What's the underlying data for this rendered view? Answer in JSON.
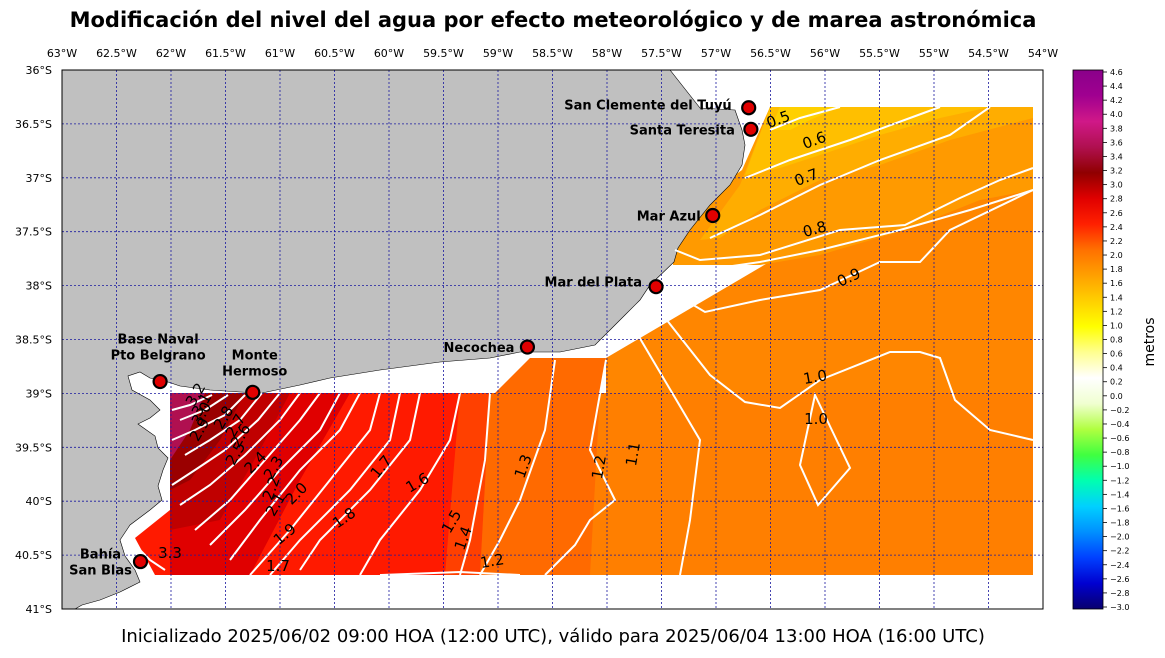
{
  "title": "Modificación del nivel del agua por efecto meteorológico y de marea astronómica",
  "footer": "Inicializado 2025/06/02 09:00 HOA (12:00 UTC), válido para 2025/06/04 13:00 HOA (16:00 UTC)",
  "lon_ticks": [
    "63°W",
    "62.5°W",
    "62°W",
    "61.5°W",
    "61°W",
    "60.5°W",
    "60°W",
    "59.5°W",
    "59°W",
    "58.5°W",
    "58°W",
    "57.5°W",
    "57°W",
    "56.5°W",
    "56°W",
    "55.5°W",
    "55°W",
    "54.5°W",
    "54°W"
  ],
  "lat_ticks": [
    "36°S",
    "36.5°S",
    "37°S",
    "37.5°S",
    "38°S",
    "38.5°S",
    "39°S",
    "39.5°S",
    "40°S",
    "40.5°S",
    "41°S"
  ],
  "colorbar": {
    "label": "metros",
    "ticks": [
      "4.6",
      "4.4",
      "4.2",
      "4.0",
      "3.8",
      "3.6",
      "3.4",
      "3.2",
      "3.0",
      "2.8",
      "2.6",
      "2.4",
      "2.2",
      "2.0",
      "1.8",
      "1.6",
      "1.4",
      "1.2",
      "1.0",
      "0.8",
      "0.6",
      "0.4",
      "0.2",
      "0.0",
      "−0.2",
      "−0.4",
      "−0.6",
      "−0.8",
      "−1.0",
      "−1.2",
      "−1.4",
      "−1.6",
      "−1.8",
      "−2.0",
      "−2.2",
      "−2.4",
      "−2.6",
      "−2.8",
      "−3.0"
    ],
    "range": [
      -3.0,
      4.6
    ],
    "colors": [
      "#08006e",
      "#0000d0",
      "#0040ff",
      "#0090ff",
      "#00d0ff",
      "#00ffb0",
      "#40ff40",
      "#b0ff40",
      "#f0ffd0",
      "#ffffff",
      "#ffff90",
      "#ffff00",
      "#ffd000",
      "#ffa000",
      "#ff7000",
      "#ff2000",
      "#e00000",
      "#900000",
      "#b01050",
      "#d01888",
      "#a00090",
      "#8a008a"
    ]
  },
  "stations": [
    {
      "name": "San Clemente del Tuyú",
      "lon": -56.7,
      "lat": -36.35
    },
    {
      "name": "Santa Teresita",
      "lon": -56.68,
      "lat": -36.55
    },
    {
      "name": "Mar Azul",
      "lon": -57.03,
      "lat": -37.35
    },
    {
      "name": "Mar del Plata",
      "lon": -57.55,
      "lat": -38.01
    },
    {
      "name": "Necochea",
      "lon": -58.73,
      "lat": -38.57
    },
    {
      "name": "Base Naval Pto Belgrano",
      "lon": -62.1,
      "lat": -38.89
    },
    {
      "name": "Monte Hermoso",
      "lon": -61.25,
      "lat": -38.99
    },
    {
      "name": "Bahía San Blas",
      "lon": -62.28,
      "lat": -40.56
    }
  ],
  "contour_labels": [
    "0.5",
    "0.6",
    "0.7",
    "0.8",
    "0.9",
    "1.0",
    "1.0",
    "1.1",
    "1.2",
    "1.3",
    "1.2",
    "1.4",
    "1.5",
    "1.6",
    "1.7",
    "1.8",
    "1.9",
    "2.0",
    "2.1",
    "2.2",
    "2.3",
    "2.4",
    "2.5",
    "2.6",
    "2.7",
    "2.8",
    "2.9",
    "3.0",
    "3.1",
    "3.2",
    "3.3",
    "1.7",
    "1.6"
  ]
}
